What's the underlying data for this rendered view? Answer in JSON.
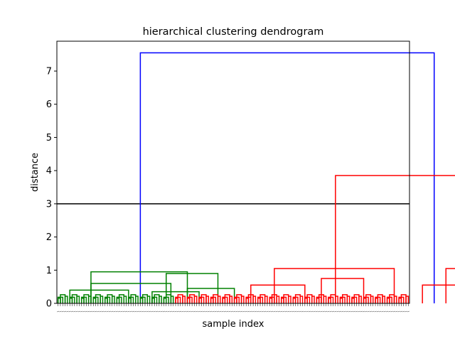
{
  "chart_data": {
    "type": "dendrogram",
    "title": "hierarchical clustering dendrogram",
    "xlabel": "sample index",
    "ylabel": "distance",
    "ylim": [
      0,
      7.9
    ],
    "yticks": [
      "0",
      "1",
      "2",
      "3",
      "4",
      "5",
      "6",
      "7"
    ],
    "n_leaves": 150,
    "cut_line": {
      "y": 3.0,
      "color": "#000000"
    },
    "colors": {
      "cluster1": "#008000",
      "cluster2": "#ff0000",
      "above_cut": "#0000ff"
    },
    "merges": [
      {
        "x_left": 35,
        "x_right": 160,
        "height": 7.55,
        "color": "#0000ff"
      },
      {
        "x_left": 118,
        "x_right": 202,
        "height": 3.85,
        "color": "#ff0000"
      },
      {
        "x_left": 14,
        "x_right": 55,
        "height": 0.95,
        "color": "#008000"
      },
      {
        "x_left": 14,
        "x_right": 48,
        "height": 0.6,
        "color": "#008000"
      },
      {
        "x_left": 5,
        "x_right": 30,
        "height": 0.4,
        "color": "#008000"
      },
      {
        "x_left": 40,
        "x_right": 60,
        "height": 0.35,
        "color": "#008000"
      },
      {
        "x_left": 46,
        "x_right": 68,
        "height": 0.9,
        "color": "#008000"
      },
      {
        "x_left": 55,
        "x_right": 75,
        "height": 0.45,
        "color": "#008000"
      },
      {
        "x_left": 92,
        "x_right": 143,
        "height": 1.05,
        "color": "#ff0000"
      },
      {
        "x_left": 82,
        "x_right": 105,
        "height": 0.55,
        "color": "#ff0000"
      },
      {
        "x_left": 112,
        "x_right": 130,
        "height": 0.75,
        "color": "#ff0000"
      },
      {
        "x_left": 165,
        "x_right": 215,
        "height": 1.05,
        "color": "#ff0000"
      },
      {
        "x_left": 155,
        "x_right": 175,
        "height": 0.55,
        "color": "#ff0000"
      },
      {
        "x_left": 200,
        "x_right": 228,
        "height": 0.85,
        "color": "#ff0000"
      },
      {
        "x_left": 210,
        "x_right": 240,
        "height": 0.5,
        "color": "#ff0000"
      }
    ]
  }
}
